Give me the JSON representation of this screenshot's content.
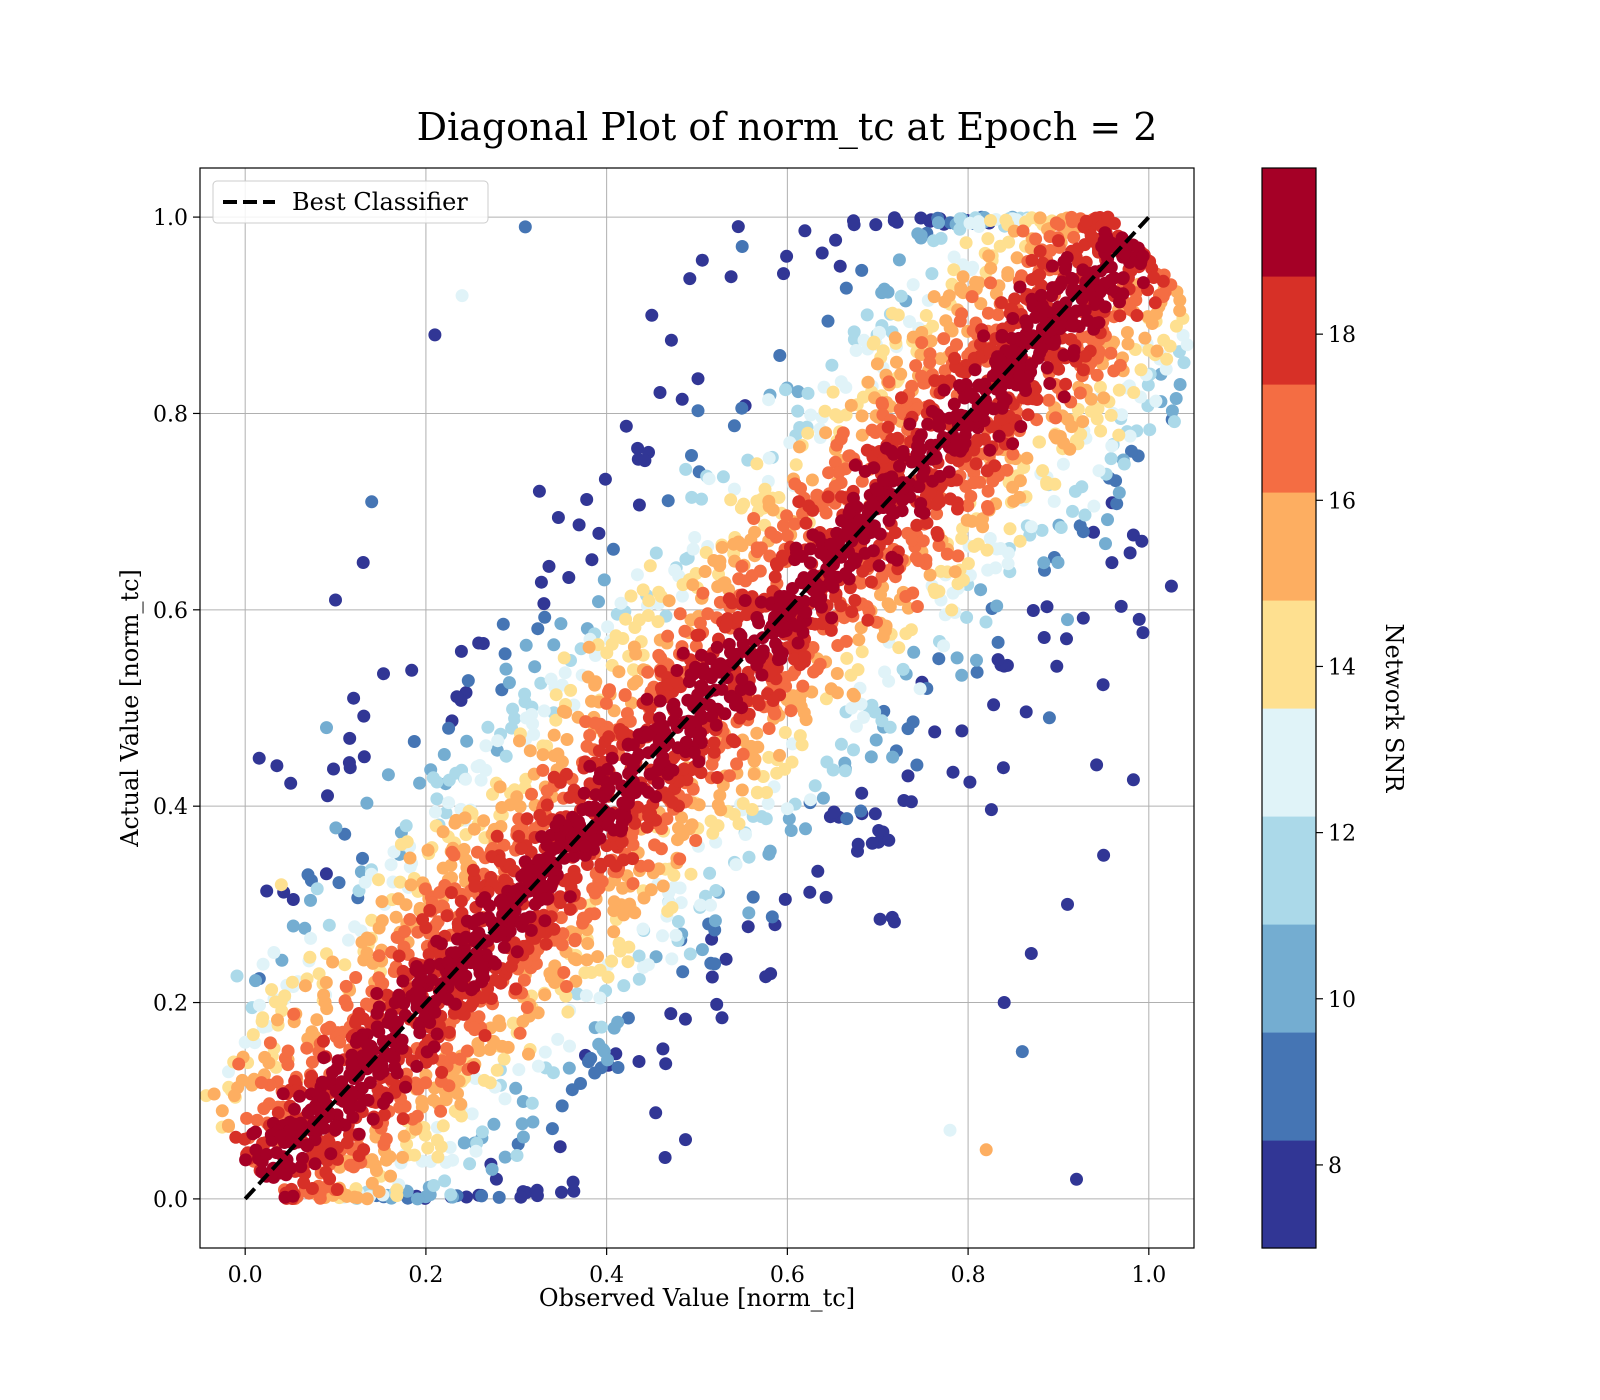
{
  "chart_data": {
    "type": "scatter",
    "title": "Diagonal Plot of norm_tc at Epoch = 2",
    "xlabel": "Observed Value [norm_tc]",
    "ylabel": "Actual Value [norm_tc]",
    "xlim": [
      -0.05,
      1.05
    ],
    "ylim": [
      -0.05,
      1.05
    ],
    "xticks": [
      "0.0",
      "0.2",
      "0.4",
      "0.6",
      "0.8",
      "1.0"
    ],
    "yticks": [
      "0.0",
      "0.2",
      "0.4",
      "0.6",
      "0.8",
      "1.0"
    ],
    "grid": true,
    "legend": {
      "placement": "top-left",
      "entries": [
        {
          "label": "Best Classifier",
          "style": "dashed",
          "color": "#000000"
        }
      ]
    },
    "reference_line": {
      "name": "Best Classifier",
      "x": [
        0.0,
        1.0
      ],
      "y": [
        0.0,
        1.0
      ]
    },
    "colorbar": {
      "label": "Network SNR",
      "range": [
        7,
        20
      ],
      "ticks": [
        "8",
        "10",
        "12",
        "14",
        "16",
        "18"
      ],
      "colors": [
        "#313695",
        "#4575b4",
        "#74add1",
        "#abd9e9",
        "#e0f3f8",
        "#fee090",
        "#fdae61",
        "#f46d43",
        "#d73027",
        "#a50026"
      ]
    },
    "scatter_sample": [
      {
        "x": 0.1,
        "y": 0.61,
        "snr": 7.5
      },
      {
        "x": 0.14,
        "y": 0.71,
        "snr": 9.0
      },
      {
        "x": 0.21,
        "y": 0.88,
        "snr": 7.8
      },
      {
        "x": 0.24,
        "y": 0.92,
        "snr": 12.5
      },
      {
        "x": 0.31,
        "y": 0.99,
        "snr": 9.5
      },
      {
        "x": 0.04,
        "y": 0.32,
        "snr": 14.5
      },
      {
        "x": 0.12,
        "y": 0.51,
        "snr": 7.6
      },
      {
        "x": 0.09,
        "y": 0.48,
        "snr": 10.2
      },
      {
        "x": 0.92,
        "y": 0.02,
        "snr": 7.7
      },
      {
        "x": 0.82,
        "y": 0.05,
        "snr": 15.0
      },
      {
        "x": 0.78,
        "y": 0.07,
        "snr": 12.8
      },
      {
        "x": 0.84,
        "y": 0.2,
        "snr": 8.2
      },
      {
        "x": 0.91,
        "y": 0.3,
        "snr": 7.9
      },
      {
        "x": 0.87,
        "y": 0.25,
        "snr": 8.1
      },
      {
        "x": 0.95,
        "y": 0.35,
        "snr": 7.6
      },
      {
        "x": 0.91,
        "y": 0.59,
        "snr": 9.8
      },
      {
        "x": 0.89,
        "y": 0.49,
        "snr": 8.3
      },
      {
        "x": 0.86,
        "y": 0.15,
        "snr": 9.5
      },
      {
        "x": 0.45,
        "y": 0.9,
        "snr": 7.8
      },
      {
        "x": 0.55,
        "y": 0.97,
        "snr": 8.5
      }
    ]
  }
}
